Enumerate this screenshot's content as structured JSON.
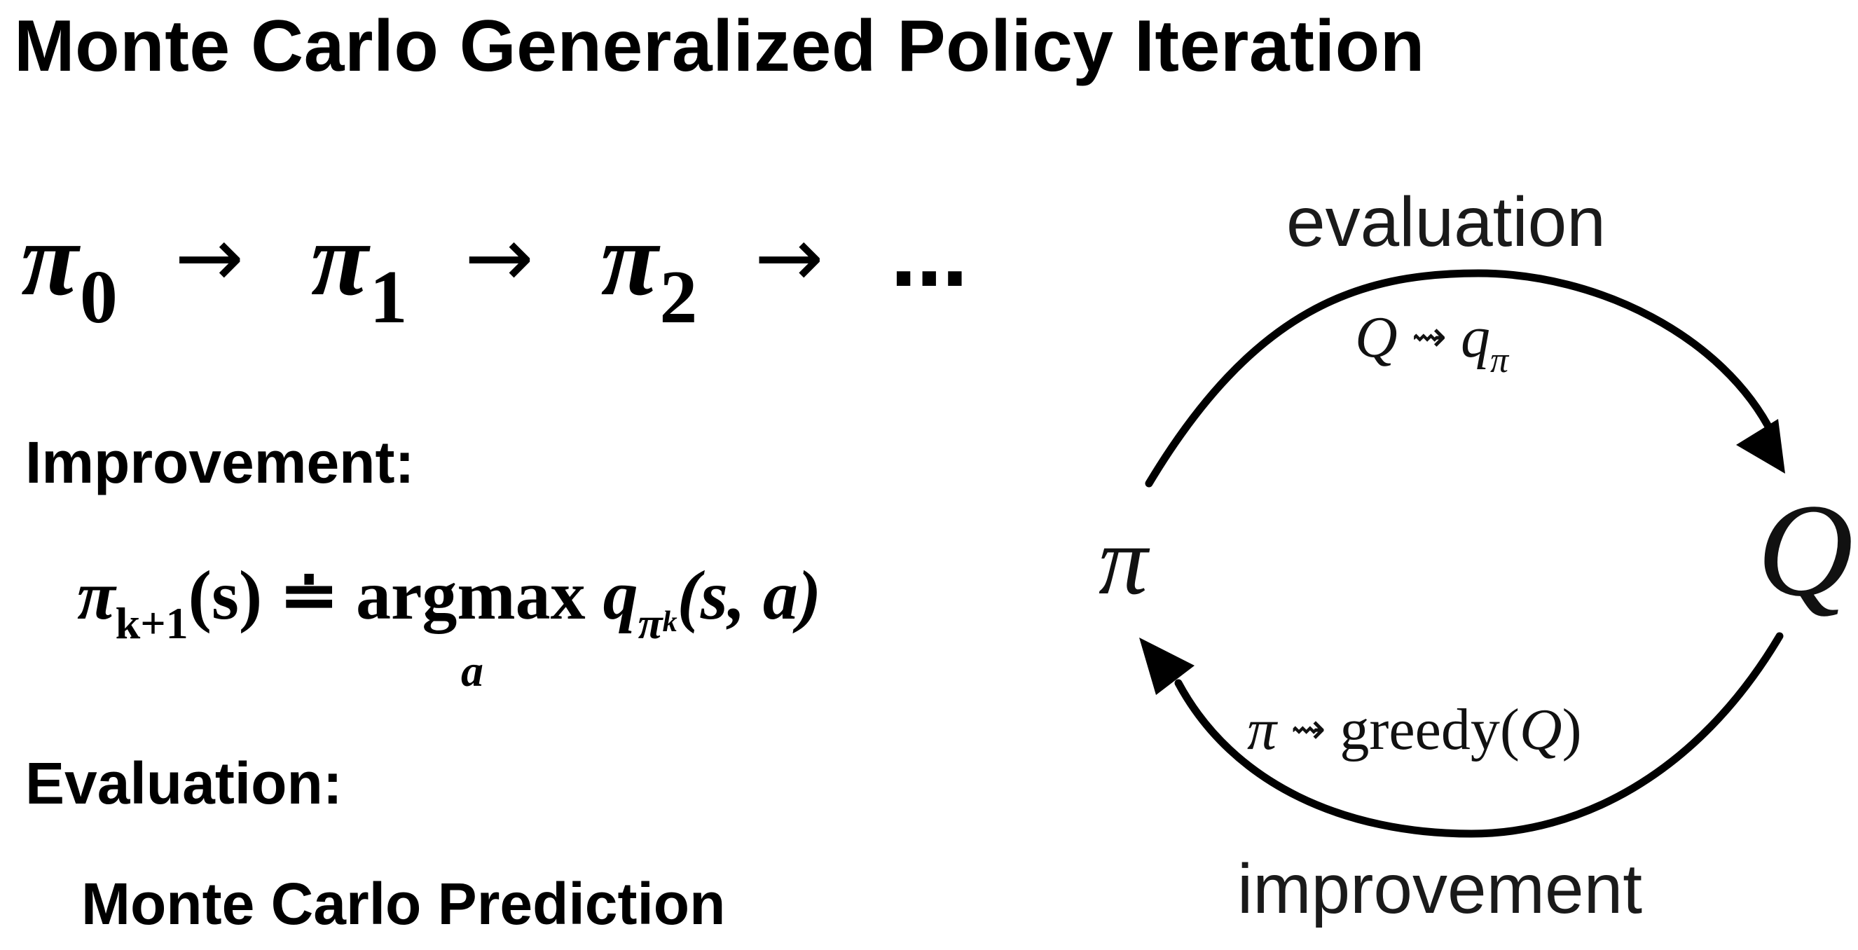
{
  "title": "Monte Carlo Generalized Policy Iteration",
  "sequence": {
    "policy_symbol": "π",
    "subscripts": [
      "0",
      "1",
      "2"
    ],
    "arrow": "→",
    "ellipsis": "…"
  },
  "improvement": {
    "heading": "Improvement:",
    "lhs_symbol": "π",
    "lhs_subscript": "k+1",
    "lhs_arg": "(s)",
    "relation": "≐",
    "operator": "argmax",
    "operator_subscript": "a",
    "q_symbol": "q",
    "q_subscript": "π",
    "q_subsubscript": "k",
    "q_args": "(s, a)"
  },
  "evaluation": {
    "heading": "Evaluation:",
    "method": "Monte Carlo Prediction"
  },
  "cycle": {
    "top_label": "evaluation",
    "bottom_label": "improvement",
    "left_node": "π",
    "right_node": "Q",
    "eval_formula": {
      "lhs": "Q",
      "arrow": "⇝",
      "rhs": "q",
      "rhs_subscript": "π"
    },
    "improve_formula": {
      "lhs": "π",
      "arrow": "⇝",
      "rhs": "greedy(",
      "rhs_arg": "Q",
      "rhs_close": ")"
    }
  }
}
